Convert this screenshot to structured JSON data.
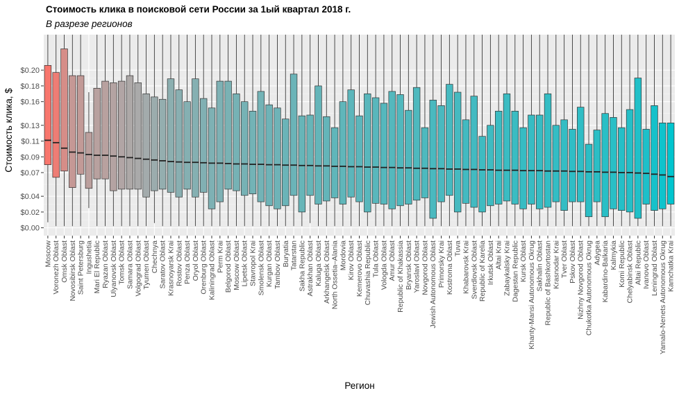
{
  "chart_data": {
    "type": "boxplot",
    "title": "Стоимость клика в поисковой сети России за 1ый квартал 2018 г.",
    "subtitle": "В разрезе регионов",
    "xlabel": "Регион",
    "ylabel": "Стоимость клика, $",
    "ylim": [
      -0.01,
      0.245
    ],
    "yticks": [
      0.0,
      0.02,
      0.04,
      0.07,
      0.09,
      0.11,
      0.13,
      0.16,
      0.18,
      0.2
    ],
    "ytick_labels": [
      "$0.00",
      "$0.02",
      "$0.04",
      "$0.07",
      "$0.09",
      "$0.11",
      "$0.13",
      "$0.16",
      "$0.18",
      "$0.20"
    ],
    "grid": true,
    "legend": "none",
    "fill_gradient": [
      "#f8766d",
      "#00c5cf"
    ],
    "median_values": [
      0.111,
      0.108,
      0.101,
      0.096,
      0.095,
      0.093,
      0.092,
      0.092,
      0.091,
      0.09,
      0.089,
      0.088,
      0.087,
      0.086,
      0.085,
      0.084,
      0.0835,
      0.083,
      0.083,
      0.0825,
      0.082,
      0.082,
      0.0815,
      0.081,
      0.081,
      0.0805,
      0.0805,
      0.08,
      0.08,
      0.0795,
      0.0795,
      0.079,
      0.079,
      0.0785,
      0.0785,
      0.078,
      0.078,
      0.0775,
      0.0775,
      0.077,
      0.077,
      0.0765,
      0.0765,
      0.076,
      0.076,
      0.0755,
      0.0755,
      0.075,
      0.075,
      0.0745,
      0.0745,
      0.074,
      0.074,
      0.0735,
      0.0735,
      0.073,
      0.073,
      0.073,
      0.0725,
      0.0725,
      0.0725,
      0.072,
      0.072,
      0.072,
      0.0715,
      0.0715,
      0.071,
      0.071,
      0.0705,
      0.0705,
      0.07,
      0.07,
      0.0695,
      0.069,
      0.068,
      0.067,
      0.065
    ],
    "regions": [
      {
        "name": "Moscow",
        "q1": 0.08,
        "median": 0.111,
        "q3": 0.206,
        "lower": 0.007,
        "upper": 0.245
      },
      {
        "name": "Voronezh Oblast",
        "q1": 0.064,
        "median": 0.108,
        "q3": 0.197,
        "lower": 0.002,
        "upper": 0.245
      },
      {
        "name": "Omsk Oblast",
        "q1": 0.072,
        "median": 0.101,
        "q3": 0.227,
        "lower": 0.002,
        "upper": 0.245
      },
      {
        "name": "Novosibirsk Oblast",
        "q1": 0.051,
        "median": 0.096,
        "q3": 0.193,
        "lower": 0.002,
        "upper": 0.245
      },
      {
        "name": "Saint Petersburg",
        "q1": 0.068,
        "median": 0.095,
        "q3": 0.193,
        "lower": 0.002,
        "upper": 0.245
      },
      {
        "name": "Ingushetia",
        "q1": 0.05,
        "median": 0.093,
        "q3": 0.121,
        "lower": 0.025,
        "upper": 0.172
      },
      {
        "name": "Mari El Republic",
        "q1": 0.062,
        "median": 0.092,
        "q3": 0.177,
        "lower": 0.002,
        "upper": 0.245
      },
      {
        "name": "Ryazan Oblast",
        "q1": 0.062,
        "median": 0.092,
        "q3": 0.186,
        "lower": 0.002,
        "upper": 0.245
      },
      {
        "name": "Ulyanovsk Oblast",
        "q1": 0.047,
        "median": 0.091,
        "q3": 0.184,
        "lower": 0.002,
        "upper": 0.245
      },
      {
        "name": "Tomsk Oblast",
        "q1": 0.049,
        "median": 0.09,
        "q3": 0.186,
        "lower": 0.002,
        "upper": 0.245
      },
      {
        "name": "Samara Oblast",
        "q1": 0.049,
        "median": 0.089,
        "q3": 0.193,
        "lower": 0.002,
        "upper": 0.245
      },
      {
        "name": "Volgograd Oblast",
        "q1": 0.049,
        "median": 0.088,
        "q3": 0.184,
        "lower": 0.002,
        "upper": 0.245
      },
      {
        "name": "Tyumen Oblast",
        "q1": 0.039,
        "median": 0.087,
        "q3": 0.17,
        "lower": 0.002,
        "upper": 0.245
      },
      {
        "name": "Chechnya",
        "q1": 0.047,
        "median": 0.086,
        "q3": 0.166,
        "lower": 0.006,
        "upper": 0.245
      },
      {
        "name": "Saratov Oblast",
        "q1": 0.049,
        "median": 0.085,
        "q3": 0.163,
        "lower": 0.002,
        "upper": 0.245
      },
      {
        "name": "Krasnoyarsk Krai",
        "q1": 0.045,
        "median": 0.084,
        "q3": 0.189,
        "lower": 0.002,
        "upper": 0.245
      },
      {
        "name": "Rostov Oblast",
        "q1": 0.039,
        "median": 0.0835,
        "q3": 0.175,
        "lower": 0.002,
        "upper": 0.245
      },
      {
        "name": "Penza Oblast",
        "q1": 0.049,
        "median": 0.083,
        "q3": 0.16,
        "lower": 0.002,
        "upper": 0.245
      },
      {
        "name": "Oryol Oblast",
        "q1": 0.039,
        "median": 0.083,
        "q3": 0.189,
        "lower": 0.002,
        "upper": 0.245
      },
      {
        "name": "Orenburg Oblast",
        "q1": 0.045,
        "median": 0.0825,
        "q3": 0.164,
        "lower": 0.002,
        "upper": 0.245
      },
      {
        "name": "Kaliningrad Oblast",
        "q1": 0.024,
        "median": 0.082,
        "q3": 0.152,
        "lower": 0.002,
        "upper": 0.245
      },
      {
        "name": "Perm Krai",
        "q1": 0.033,
        "median": 0.082,
        "q3": 0.186,
        "lower": 0.002,
        "upper": 0.245
      },
      {
        "name": "Belgorod Oblast",
        "q1": 0.049,
        "median": 0.0815,
        "q3": 0.186,
        "lower": 0.002,
        "upper": 0.245
      },
      {
        "name": "Moscow Oblast",
        "q1": 0.047,
        "median": 0.081,
        "q3": 0.17,
        "lower": 0.002,
        "upper": 0.245
      },
      {
        "name": "Lipetsk Oblast",
        "q1": 0.041,
        "median": 0.081,
        "q3": 0.16,
        "lower": 0.002,
        "upper": 0.245
      },
      {
        "name": "Stavropol Krai",
        "q1": 0.043,
        "median": 0.0805,
        "q3": 0.148,
        "lower": 0.002,
        "upper": 0.245
      },
      {
        "name": "Smolensk Oblast",
        "q1": 0.033,
        "median": 0.0805,
        "q3": 0.173,
        "lower": 0.002,
        "upper": 0.245
      },
      {
        "name": "Kurgan Oblast",
        "q1": 0.028,
        "median": 0.08,
        "q3": 0.156,
        "lower": 0.002,
        "upper": 0.245
      },
      {
        "name": "Tambov Oblast",
        "q1": 0.024,
        "median": 0.08,
        "q3": 0.152,
        "lower": 0.002,
        "upper": 0.245
      },
      {
        "name": "Buryatia",
        "q1": 0.028,
        "median": 0.0795,
        "q3": 0.138,
        "lower": 0.002,
        "upper": 0.245
      },
      {
        "name": "Tatarstan",
        "q1": 0.041,
        "median": 0.0795,
        "q3": 0.195,
        "lower": 0.002,
        "upper": 0.245
      },
      {
        "name": "Sakha Republic",
        "q1": 0.02,
        "median": 0.079,
        "q3": 0.142,
        "lower": 0.002,
        "upper": 0.245
      },
      {
        "name": "Astrakhan Oblast",
        "q1": 0.041,
        "median": 0.079,
        "q3": 0.143,
        "lower": 0.006,
        "upper": 0.245
      },
      {
        "name": "Kaluga Oblast",
        "q1": 0.03,
        "median": 0.0785,
        "q3": 0.18,
        "lower": 0.002,
        "upper": 0.245
      },
      {
        "name": "Arkhangelsk Oblast",
        "q1": 0.034,
        "median": 0.0785,
        "q3": 0.141,
        "lower": 0.002,
        "upper": 0.245
      },
      {
        "name": "North Ossetia–Alania",
        "q1": 0.038,
        "median": 0.078,
        "q3": 0.127,
        "lower": 0.002,
        "upper": 0.245
      },
      {
        "name": "Mordovia",
        "q1": 0.03,
        "median": 0.078,
        "q3": 0.16,
        "lower": 0.002,
        "upper": 0.245
      },
      {
        "name": "Kirov Oblast",
        "q1": 0.039,
        "median": 0.0775,
        "q3": 0.175,
        "lower": 0.002,
        "upper": 0.245
      },
      {
        "name": "Kemerovo Oblast",
        "q1": 0.033,
        "median": 0.0775,
        "q3": 0.142,
        "lower": 0.002,
        "upper": 0.245
      },
      {
        "name": "Chuvashia Republic",
        "q1": 0.02,
        "median": 0.077,
        "q3": 0.17,
        "lower": 0.002,
        "upper": 0.245
      },
      {
        "name": "Tula Oblast",
        "q1": 0.031,
        "median": 0.077,
        "q3": 0.165,
        "lower": 0.002,
        "upper": 0.245
      },
      {
        "name": "Vologda Oblast",
        "q1": 0.03,
        "median": 0.0765,
        "q3": 0.158,
        "lower": 0.002,
        "upper": 0.245
      },
      {
        "name": "Amur Oblast",
        "q1": 0.024,
        "median": 0.0765,
        "q3": 0.173,
        "lower": 0.002,
        "upper": 0.245
      },
      {
        "name": "Republic of Khakassia",
        "q1": 0.028,
        "median": 0.076,
        "q3": 0.169,
        "lower": 0.002,
        "upper": 0.245
      },
      {
        "name": "Bryansk Oblast",
        "q1": 0.03,
        "median": 0.076,
        "q3": 0.149,
        "lower": 0.002,
        "upper": 0.245
      },
      {
        "name": "Yaroslavl Oblast",
        "q1": 0.035,
        "median": 0.0755,
        "q3": 0.178,
        "lower": 0.002,
        "upper": 0.245
      },
      {
        "name": "Novgorod Oblast",
        "q1": 0.038,
        "median": 0.0755,
        "q3": 0.127,
        "lower": 0.002,
        "upper": 0.245
      },
      {
        "name": "Jewish Autonomous Oblast",
        "q1": 0.012,
        "median": 0.075,
        "q3": 0.162,
        "lower": 0.002,
        "upper": 0.245
      },
      {
        "name": "Primorsky Krai",
        "q1": 0.033,
        "median": 0.075,
        "q3": 0.155,
        "lower": 0.002,
        "upper": 0.245
      },
      {
        "name": "Kostroma Oblast",
        "q1": 0.041,
        "median": 0.0745,
        "q3": 0.182,
        "lower": 0.002,
        "upper": 0.245
      },
      {
        "name": "Tuva",
        "q1": 0.02,
        "median": 0.0745,
        "q3": 0.172,
        "lower": 0.002,
        "upper": 0.245
      },
      {
        "name": "Khabarovsk Krai",
        "q1": 0.031,
        "median": 0.074,
        "q3": 0.137,
        "lower": 0.002,
        "upper": 0.245
      },
      {
        "name": "Sverdlovsk Oblast",
        "q1": 0.026,
        "median": 0.074,
        "q3": 0.167,
        "lower": 0.002,
        "upper": 0.245
      },
      {
        "name": "Republic of Karelia",
        "q1": 0.02,
        "median": 0.0735,
        "q3": 0.116,
        "lower": 0.002,
        "upper": 0.245
      },
      {
        "name": "Irkutsk Oblast",
        "q1": 0.028,
        "median": 0.0735,
        "q3": 0.13,
        "lower": 0.002,
        "upper": 0.245
      },
      {
        "name": "Altai Krai",
        "q1": 0.03,
        "median": 0.073,
        "q3": 0.148,
        "lower": 0.002,
        "upper": 0.245
      },
      {
        "name": "Zabaykalsky Krai",
        "q1": 0.034,
        "median": 0.073,
        "q3": 0.17,
        "lower": 0.002,
        "upper": 0.245
      },
      {
        "name": "Dagestan Republic",
        "q1": 0.03,
        "median": 0.073,
        "q3": 0.148,
        "lower": 0.002,
        "upper": 0.245
      },
      {
        "name": "Kursk Oblast",
        "q1": 0.024,
        "median": 0.0725,
        "q3": 0.127,
        "lower": 0.002,
        "upper": 0.245
      },
      {
        "name": "Khanty-Mansi Autonomous Okrug",
        "q1": 0.03,
        "median": 0.0725,
        "q3": 0.143,
        "lower": 0.002,
        "upper": 0.245
      },
      {
        "name": "Sakhalin Oblast",
        "q1": 0.024,
        "median": 0.0725,
        "q3": 0.143,
        "lower": 0.002,
        "upper": 0.245
      },
      {
        "name": "Republic of Bashkortostan",
        "q1": 0.026,
        "median": 0.072,
        "q3": 0.17,
        "lower": 0.002,
        "upper": 0.245
      },
      {
        "name": "Krasnodar Krai",
        "q1": 0.033,
        "median": 0.072,
        "q3": 0.13,
        "lower": 0.002,
        "upper": 0.245
      },
      {
        "name": "Tver Oblast",
        "q1": 0.022,
        "median": 0.072,
        "q3": 0.137,
        "lower": 0.002,
        "upper": 0.245
      },
      {
        "name": "Pskov Oblast",
        "q1": 0.033,
        "median": 0.0715,
        "q3": 0.125,
        "lower": 0.002,
        "upper": 0.245
      },
      {
        "name": "Nizhny Novgorod Oblast",
        "q1": 0.033,
        "median": 0.0715,
        "q3": 0.153,
        "lower": 0.002,
        "upper": 0.245
      },
      {
        "name": "Chukotka Autonomous Okrug",
        "q1": 0.014,
        "median": 0.071,
        "q3": 0.106,
        "lower": 0.002,
        "upper": 0.245
      },
      {
        "name": "Adygea",
        "q1": 0.033,
        "median": 0.071,
        "q3": 0.124,
        "lower": 0.002,
        "upper": 0.245
      },
      {
        "name": "Kabardino-Balkaria",
        "q1": 0.014,
        "median": 0.0705,
        "q3": 0.145,
        "lower": 0.002,
        "upper": 0.245
      },
      {
        "name": "Kalmykia",
        "q1": 0.024,
        "median": 0.0705,
        "q3": 0.14,
        "lower": 0.002,
        "upper": 0.245
      },
      {
        "name": "Komi Republic",
        "q1": 0.022,
        "median": 0.07,
        "q3": 0.127,
        "lower": 0.002,
        "upper": 0.245
      },
      {
        "name": "Chelyabinsk Oblast",
        "q1": 0.02,
        "median": 0.07,
        "q3": 0.15,
        "lower": 0.002,
        "upper": 0.245
      },
      {
        "name": "Altai Republic",
        "q1": 0.012,
        "median": 0.0695,
        "q3": 0.19,
        "lower": 0.002,
        "upper": 0.245
      },
      {
        "name": "Ivanovo Oblast",
        "q1": 0.03,
        "median": 0.069,
        "q3": 0.125,
        "lower": 0.002,
        "upper": 0.245
      },
      {
        "name": "Leningrad Oblast",
        "q1": 0.022,
        "median": 0.068,
        "q3": 0.155,
        "lower": 0.002,
        "upper": 0.245
      },
      {
        "name": "Yamalo-Nenets Autonomous Okrug",
        "q1": 0.024,
        "median": 0.067,
        "q3": 0.133,
        "lower": 0.002,
        "upper": 0.245
      },
      {
        "name": "Kamchatka Krai",
        "q1": 0.03,
        "median": 0.065,
        "q3": 0.133,
        "lower": 0.002,
        "upper": 0.245
      }
    ]
  }
}
